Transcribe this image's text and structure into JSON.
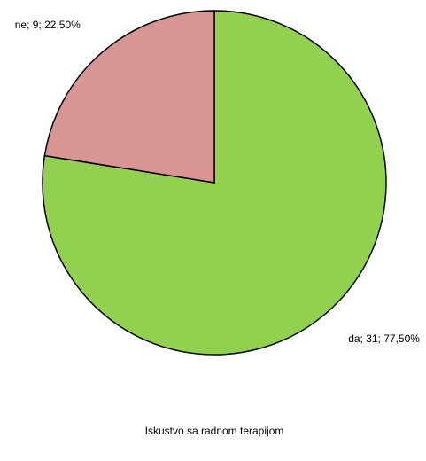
{
  "chart_data": {
    "type": "pie",
    "title": "Iskustvo sa radnom terapijom",
    "categories": [
      "da",
      "ne"
    ],
    "values": [
      31,
      9
    ],
    "value_labels": [
      "da; 31; 77,50%",
      "ne; 9; 22,50%"
    ],
    "colors": [
      "#92d050",
      "#d99594"
    ]
  }
}
